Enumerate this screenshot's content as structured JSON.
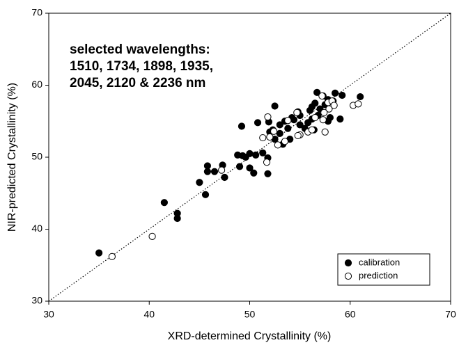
{
  "chart_data": {
    "type": "scatter",
    "xlabel": "XRD-determined Crystallinity (%)",
    "ylabel": "NIR-predicted Crystallinity (%)",
    "annotation": [
      "selected wavelengths:",
      "1510, 1734, 1898, 1935,",
      "2045, 2120 & 2236 nm"
    ],
    "xlim": [
      30,
      70
    ],
    "ylim": [
      30,
      70
    ],
    "xticks": [
      30,
      40,
      50,
      60,
      70
    ],
    "yticks": [
      30,
      40,
      50,
      60,
      70
    ],
    "grid": false,
    "legend": "lower right",
    "series": [
      {
        "name": "calibration",
        "color": "#000000",
        "x": [
          35,
          41.5,
          42.8,
          42.8,
          45,
          45.6,
          45.8,
          45.8,
          46.5,
          47.3,
          47.5,
          48.8,
          49,
          49.2,
          49.3,
          49.6,
          50,
          50,
          50.4,
          50.6,
          50.8,
          51.3,
          51.8,
          51.8,
          51.9,
          52,
          52.3,
          52.5,
          52.5,
          53,
          53.3,
          53.5,
          53.8,
          54,
          54.2,
          54.4,
          54.8,
          55,
          55.5,
          55.8,
          56,
          56.2,
          56.4,
          56.5,
          56.7,
          56.8,
          57,
          57.3,
          57.5,
          57.8,
          58,
          58.3,
          58.5,
          59,
          59.2,
          61,
          57.8,
          56.2,
          55,
          53
        ],
        "values": [
          36.7,
          43.7,
          42.2,
          41.5,
          46.5,
          44.8,
          48.8,
          48,
          48,
          48.9,
          47.2,
          50.3,
          48.7,
          54.3,
          50.2,
          50,
          50.5,
          48.5,
          47.8,
          50.3,
          54.8,
          50.6,
          49.9,
          47.7,
          54.9,
          53.5,
          53.8,
          57.1,
          52.5,
          53.3,
          51.8,
          55,
          54,
          52.5,
          55.5,
          55.2,
          56.3,
          55.8,
          54,
          54.8,
          56.5,
          55.3,
          53.8,
          57.5,
          59,
          55.8,
          56.7,
          58.5,
          57.3,
          58,
          55.5,
          57.8,
          58.9,
          55.3,
          58.6,
          58.4,
          55,
          57,
          54.5,
          54.5
        ]
      },
      {
        "name": "prediction",
        "color": "#ffffff",
        "x": [
          36.3,
          40.3,
          47.2,
          51.3,
          51.7,
          51.8,
          52,
          52.4,
          52.8,
          53.5,
          53.8,
          54.7,
          55,
          54.8,
          55.8,
          56.2,
          56.5,
          57.2,
          57.3,
          57.5,
          57.8,
          57.9,
          58.2,
          58.4,
          60.3,
          60.8,
          57.4
        ],
        "values": [
          36.2,
          39,
          48.2,
          52.7,
          49.3,
          55.6,
          52.8,
          53.6,
          51.7,
          52.2,
          55.1,
          56.2,
          53.1,
          53,
          53.5,
          53.8,
          55.5,
          58.5,
          55.2,
          53.5,
          57.6,
          56.7,
          57.8,
          57.2,
          57.2,
          57.4,
          56.2
        ]
      }
    ]
  }
}
